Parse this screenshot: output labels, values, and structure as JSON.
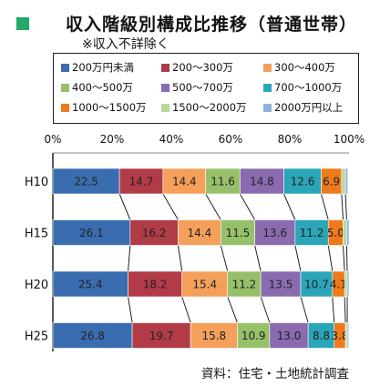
{
  "header": {
    "title": "収入階級別構成比推移（普通世帯）",
    "subtitle": "※収入不詳除く"
  },
  "source": "資料：住宅・土地統計調査",
  "colors": {
    "title_marker": "#22aa66",
    "connector": "#222222"
  },
  "chart_data": {
    "type": "bar",
    "orientation": "horizontal",
    "stacked": true,
    "percent": true,
    "title": "収入階級別構成比推移（普通世帯）",
    "subtitle": "※収入不詳除く",
    "categories": [
      "H10",
      "H15",
      "H20",
      "H25"
    ],
    "xlim": [
      0,
      100
    ],
    "xticks": [
      "0%",
      "20%",
      "40%",
      "60%",
      "80%",
      "100%"
    ],
    "legend_position": "top",
    "series": [
      {
        "name": "200万円未満",
        "color": "#3a6db0",
        "values": [
          22.5,
          26.1,
          25.4,
          26.8
        ],
        "labels": [
          "22.5",
          "26.1",
          "25.4",
          "26.8"
        ]
      },
      {
        "name": "200～300万",
        "color": "#b23b48",
        "values": [
          14.7,
          16.2,
          18.2,
          19.7
        ],
        "labels": [
          "14.7",
          "16.2",
          "18.2",
          "19.7"
        ]
      },
      {
        "name": "300～400万",
        "color": "#f5a05a",
        "values": [
          14.4,
          14.4,
          15.4,
          15.8
        ],
        "labels": [
          "14.4",
          "14.4",
          "15.4",
          "15.8"
        ]
      },
      {
        "name": "400～500万",
        "color": "#97c06a",
        "values": [
          11.6,
          11.5,
          11.2,
          10.9
        ],
        "labels": [
          "11.6",
          "11.5",
          "11.2",
          "10.9"
        ]
      },
      {
        "name": "500～700万",
        "color": "#8a6bb0",
        "values": [
          14.8,
          13.6,
          13.5,
          13.0
        ],
        "labels": [
          "14.8",
          "13.6",
          "13.5",
          "13.0"
        ]
      },
      {
        "name": "700～1000万",
        "color": "#2aa6b8",
        "values": [
          12.6,
          11.2,
          10.7,
          8.8
        ],
        "labels": [
          "12.6",
          "11.2",
          "10.7",
          "8.8"
        ]
      },
      {
        "name": "1000～1500万",
        "color": "#ee7a1a",
        "values": [
          6.9,
          5.0,
          4.1,
          3.8
        ],
        "labels": [
          "6.9",
          "5.0",
          "4.1",
          "3.8"
        ]
      },
      {
        "name": "1500～2000万",
        "color": "#b8d89a",
        "values": [
          1.3,
          1.2,
          0.9,
          0.6
        ],
        "labels": [
          "",
          "",
          "",
          ""
        ]
      },
      {
        "name": "2000万円以上",
        "color": "#8fb3de",
        "values": [
          0.8,
          0.8,
          0.6,
          0.5
        ],
        "labels": [
          "",
          "",
          "",
          ""
        ]
      }
    ]
  }
}
